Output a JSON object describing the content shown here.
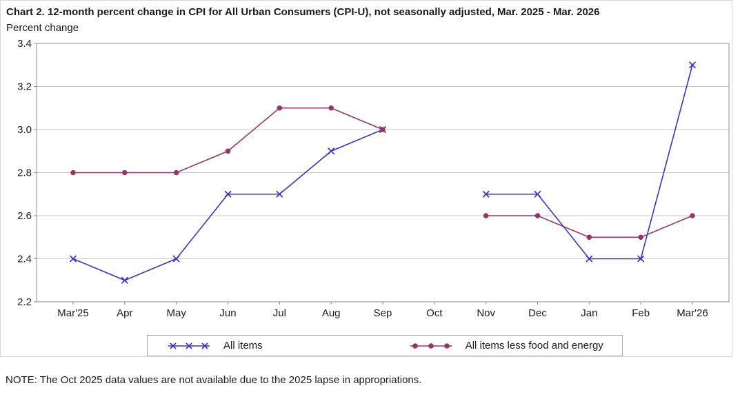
{
  "note": "NOTE: The Oct 2025 data values are not available due to the 2025 lapse in appropriations.",
  "chart_data": {
    "type": "line",
    "title": "Chart 2. 12-month percent change in CPI for All Urban Consumers (CPI-U), not seasonally adjusted, Mar. 2025 - Mar. 2026",
    "ylabel": "Percent change",
    "categories": [
      "Mar'25",
      "Apr",
      "May",
      "Jun",
      "Jul",
      "Aug",
      "Sep",
      "Oct",
      "Nov",
      "Dec",
      "Jan",
      "Feb",
      "Mar'26"
    ],
    "ylim": [
      2.2,
      3.4
    ],
    "yticks": [
      2.2,
      2.4,
      2.6,
      2.8,
      3.0,
      3.2,
      3.4
    ],
    "grid": true,
    "legend_position": "bottom",
    "colors": {
      "grid": "#c9c9c9",
      "plot_border": "#8c8c8c",
      "container_border": "#d9d9d9",
      "text": "#1a1a1a"
    },
    "series": [
      {
        "name": "All items",
        "color": "#3333cc",
        "marker": "x",
        "values": [
          2.4,
          2.3,
          2.4,
          2.7,
          2.7,
          2.9,
          3.0,
          null,
          2.7,
          2.7,
          2.4,
          2.4,
          3.3
        ]
      },
      {
        "name": "All items less food and energy",
        "color": "#993366",
        "marker": "circle",
        "values": [
          2.8,
          2.8,
          2.8,
          2.9,
          3.1,
          3.1,
          3.0,
          null,
          2.6,
          2.6,
          2.5,
          2.5,
          2.6
        ]
      }
    ]
  }
}
